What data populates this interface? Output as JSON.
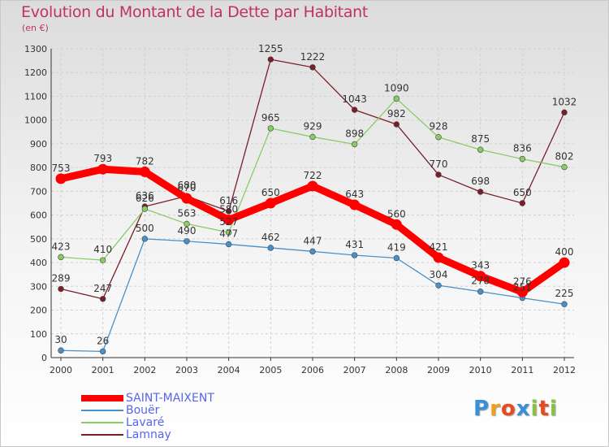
{
  "title": "Evolution du Montant de la Dette par Habitant",
  "subtitle": "(en €)",
  "chart_data": {
    "type": "line",
    "title": "Evolution du Montant de la Dette par Habitant",
    "subtitle": "(en €)",
    "xlabel": "",
    "ylabel": "",
    "x": [
      "2000",
      "2001",
      "2002",
      "2003",
      "2004",
      "2005",
      "2006",
      "2007",
      "2008",
      "2009",
      "2010",
      "2011",
      "2012"
    ],
    "ylim": [
      0,
      1300
    ],
    "yticks": [
      0,
      100,
      200,
      300,
      400,
      500,
      600,
      700,
      800,
      900,
      1000,
      1100,
      1200,
      1300
    ],
    "grid": true,
    "legend_position": "bottom-left",
    "series": [
      {
        "name": "SAINT-MAIXENT",
        "color": "#ff0000",
        "values": [
          753,
          793,
          782,
          670,
          580,
          650,
          722,
          643,
          560,
          421,
          343,
          276,
          400
        ],
        "labels": [
          "753",
          "793",
          "782",
          "670",
          "580",
          "650",
          "722",
          "643",
          "560",
          "421",
          "343",
          "276",
          "400"
        ]
      },
      {
        "name": "Bouër",
        "color": "#4a90c8",
        "values": [
          30,
          26,
          500,
          490,
          477,
          462,
          447,
          431,
          419,
          304,
          278,
          251,
          225
        ],
        "labels": [
          "30",
          "26",
          "500",
          "490",
          "477",
          "462",
          "447",
          "431",
          "419",
          "304",
          "278",
          "251",
          "225"
        ]
      },
      {
        "name": "Lavaré",
        "color": "#88cc66",
        "values": [
          423,
          410,
          626,
          563,
          527,
          965,
          929,
          898,
          1090,
          928,
          875,
          836,
          802
        ],
        "labels": [
          "423",
          "410",
          "626",
          "563",
          "527",
          "965",
          "929",
          "898",
          "1090",
          "928",
          "875",
          "836",
          "802"
        ]
      },
      {
        "name": "Lamnay",
        "color": "#7a1e2a",
        "values": [
          289,
          247,
          636,
          680,
          616,
          1255,
          1222,
          1043,
          982,
          770,
          698,
          650,
          1032
        ],
        "labels": [
          "289",
          "247",
          "636",
          "680",
          "616",
          "1255",
          "1222",
          "1043",
          "982",
          "770",
          "698",
          "650",
          "1032"
        ]
      }
    ]
  },
  "logo": {
    "letters": [
      "P",
      "r",
      "o",
      "x",
      "i",
      "t",
      "i"
    ],
    "colors": [
      "#3b8fd6",
      "#f0a020",
      "#e84a20",
      "#3b8fd6",
      "#8ac040",
      "#e84a20",
      "#8ac040"
    ]
  }
}
